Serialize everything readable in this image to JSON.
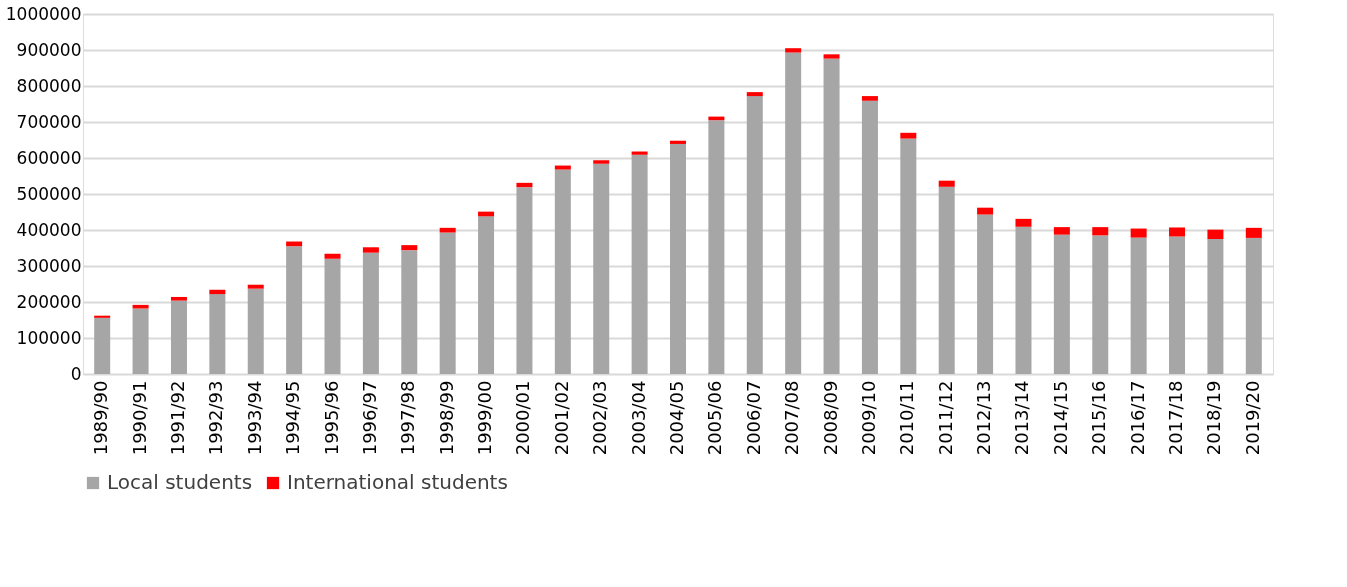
{
  "chart_data": {
    "type": "bar",
    "stacked": true,
    "categories": [
      "1989/90",
      "1990/91",
      "1991/92",
      "1992/93",
      "1993/94",
      "1994/95",
      "1995/96",
      "1996/97",
      "1997/98",
      "1998/99",
      "1999/00",
      "2000/01",
      "2001/02",
      "2002/03",
      "2003/04",
      "2004/05",
      "2005/06",
      "2006/07",
      "2007/08",
      "2008/09",
      "2009/10",
      "2010/11",
      "2011/12",
      "2012/13",
      "2013/14",
      "2014/15",
      "2015/16",
      "2016/17",
      "2017/18",
      "2018/19",
      "2019/20"
    ],
    "series": [
      {
        "name": "Local students",
        "color": "#a6a6a6",
        "values": [
          156000,
          182000,
          204000,
          222000,
          237000,
          355000,
          320000,
          337000,
          344000,
          393000,
          438000,
          519000,
          568000,
          584000,
          609000,
          639000,
          705000,
          772000,
          893000,
          876000,
          759000,
          654000,
          520000,
          443000,
          409000,
          387000,
          385000,
          379000,
          382000,
          375000,
          378000
        ]
      },
      {
        "name": "International students",
        "color": "#ff0000",
        "values": [
          6000,
          10000,
          10000,
          12000,
          11000,
          13000,
          14000,
          15000,
          14000,
          13000,
          13000,
          12000,
          11000,
          10000,
          9000,
          9000,
          10000,
          11000,
          12000,
          12000,
          13000,
          16000,
          17000,
          19000,
          22000,
          21000,
          23000,
          25000,
          25000,
          26000,
          28000
        ]
      }
    ],
    "ylim": [
      0,
      1000000
    ],
    "yticks": [
      0,
      100000,
      200000,
      300000,
      400000,
      500000,
      600000,
      700000,
      800000,
      900000,
      1000000
    ],
    "grid": "y",
    "legend": "bottom"
  }
}
